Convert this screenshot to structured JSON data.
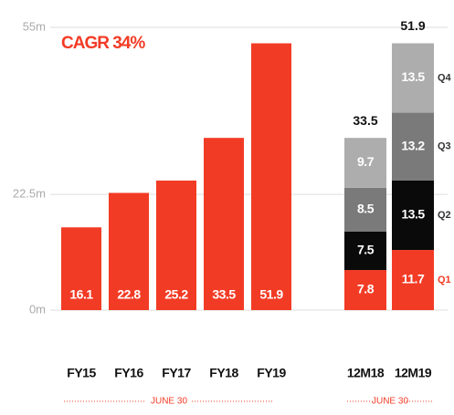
{
  "chart_data": {
    "type": "bar",
    "annotation": "CAGR 34%",
    "categories": [
      "FY15",
      "FY16",
      "FY17",
      "FY18",
      "FY19"
    ],
    "values": [
      16.1,
      22.8,
      25.2,
      33.5,
      51.9
    ],
    "color": "#f23b25",
    "ylim": [
      0,
      55
    ],
    "yticks": [
      {
        "value": 0,
        "label": "0m"
      },
      {
        "value": 22.5,
        "label": "22.5m"
      },
      {
        "value": 55,
        "label": "55m"
      }
    ],
    "grid": true,
    "stacked": {
      "categories": [
        "12M18",
        "12M19"
      ],
      "series": [
        {
          "name": "Q1",
          "color": "#f23b25",
          "values": [
            7.8,
            11.7
          ]
        },
        {
          "name": "Q2",
          "color": "#0a0a0a",
          "values": [
            7.5,
            13.5
          ]
        },
        {
          "name": "Q3",
          "color": "#7a7a7a",
          "values": [
            8.5,
            13.2
          ]
        },
        {
          "name": "Q4",
          "color": "#adadad",
          "values": [
            9.7,
            13.5
          ]
        }
      ],
      "totals": [
        33.5,
        51.9
      ]
    },
    "period_labels": [
      "JUNE 30",
      "JUNE 30"
    ]
  }
}
